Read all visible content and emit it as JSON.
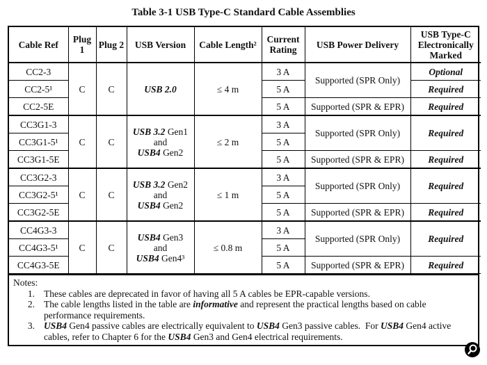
{
  "title": "Table 3-1  USB Type-C Standard Cable Assemblies",
  "table": {
    "headers": [
      "Cable Ref",
      "Plug 1",
      "Plug 2",
      "USB Version",
      "Cable Length²",
      "Current Rating",
      "USB Power Delivery",
      "USB Type-C Electronically Marked"
    ],
    "groups": [
      {
        "cable_refs": [
          "CC2-3",
          "CC2-5¹",
          "CC2-5E"
        ],
        "plug1": "C",
        "plug2": "C",
        "usb_version": [
          [
            {
              "text": "USB 2.0",
              "em": true
            }
          ]
        ],
        "length": "≤ 4 m",
        "current": [
          "3 A",
          "5 A",
          "5 A"
        ],
        "power_delivery": [
          "Supported (SPR Only)",
          "Supported (SPR & EPR)"
        ],
        "marked": [
          "Optional",
          "Required",
          "Required"
        ]
      },
      {
        "cable_refs": [
          "CC3G1-3",
          "CC3G1-5¹",
          "CC3G1-5E"
        ],
        "plug1": "C",
        "plug2": "C",
        "usb_version": [
          [
            {
              "text": "USB 3.2",
              "em": true
            },
            {
              "text": " Gen1"
            }
          ],
          [
            {
              "text": "and"
            }
          ],
          [
            {
              "text": "USB4",
              "em": true
            },
            {
              "text": " Gen2"
            }
          ]
        ],
        "length": "≤ 2 m",
        "current": [
          "3 A",
          "5 A",
          "5 A"
        ],
        "power_delivery": [
          "Supported (SPR Only)",
          "Supported (SPR & EPR)"
        ],
        "marked": [
          "Required",
          "Required"
        ]
      },
      {
        "cable_refs": [
          "CC3G2-3",
          "CC3G2-5¹",
          "CC3G2-5E"
        ],
        "plug1": "C",
        "plug2": "C",
        "usb_version": [
          [
            {
              "text": "USB 3.2",
              "em": true
            },
            {
              "text": " Gen2"
            }
          ],
          [
            {
              "text": "and"
            }
          ],
          [
            {
              "text": "USB4",
              "em": true
            },
            {
              "text": " Gen2"
            }
          ]
        ],
        "length": "≤ 1 m",
        "current": [
          "3 A",
          "5 A",
          "5 A"
        ],
        "power_delivery": [
          "Supported (SPR Only)",
          "Supported (SPR & EPR)"
        ],
        "marked": [
          "Required",
          "Required"
        ]
      },
      {
        "cable_refs": [
          "CC4G3-3",
          "CC4G3-5¹",
          "CC4G3-5E"
        ],
        "plug1": "C",
        "plug2": "C",
        "usb_version": [
          [
            {
              "text": "USB4",
              "em": true
            },
            {
              "text": " Gen3"
            }
          ],
          [
            {
              "text": "and"
            }
          ],
          [
            {
              "text": "USB4",
              "em": true
            },
            {
              "text": " Gen4³"
            }
          ]
        ],
        "length": "≤ 0.8 m",
        "current": [
          "3 A",
          "5 A",
          "5 A"
        ],
        "power_delivery": [
          "Supported (SPR Only)",
          "Supported (SPR & EPR)"
        ],
        "marked": [
          "Required",
          "Required"
        ]
      }
    ]
  },
  "notes": {
    "label": "Notes:",
    "items": [
      {
        "number": "1.",
        "parts": [
          {
            "text": "These cables are deprecated in favor of having all 5 A cables be EPR-capable versions."
          }
        ]
      },
      {
        "number": "2.",
        "parts": [
          {
            "text": "The cable lengths listed in the table are "
          },
          {
            "text": "informative",
            "em": true
          },
          {
            "text": " and represent the practical lengths based on cable performance requirements."
          }
        ]
      },
      {
        "number": "3.",
        "parts": [
          {
            "text": "USB4",
            "em": true
          },
          {
            "text": " Gen4 passive cables are electrically equivalent to "
          },
          {
            "text": "USB4",
            "em": true
          },
          {
            "text": " Gen3 passive cables.  For "
          },
          {
            "text": "USB4",
            "em": true
          },
          {
            "text": " Gen4 active cables, refer to Chapter 6 for the "
          },
          {
            "text": "USB4",
            "em": true
          },
          {
            "text": " Gen3 and Gen4 electrical requirements."
          }
        ]
      }
    ]
  }
}
